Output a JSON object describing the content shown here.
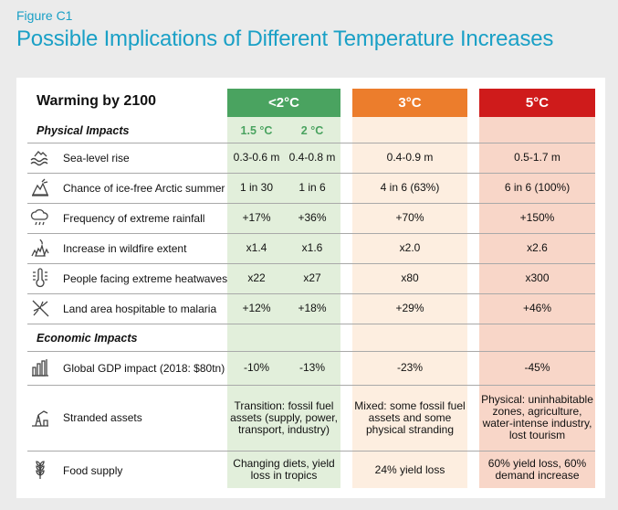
{
  "figure_label": "Figure C1",
  "title": "Possible Implications of Different Temperature Increases",
  "table": {
    "warming_label": "Warming by 2100",
    "headers": {
      "low": "<2°C",
      "mid": "3°C",
      "high": "5°C"
    },
    "sub_headers": {
      "a": "1.5 °C",
      "b": "2 °C"
    },
    "colors": {
      "green": "#4aa360",
      "orange": "#ec7d2c",
      "red": "#cf1b1b",
      "title": "#1aa0c6"
    },
    "physical_title": "Physical Impacts",
    "physical": [
      {
        "icon": "sea-level-icon",
        "label": "Sea-level rise",
        "a": "0.3-0.6 m",
        "b": "0.4-0.8 m",
        "mid": "0.4-0.9 m",
        "high": "0.5-1.7 m"
      },
      {
        "icon": "arctic-ice-icon",
        "label": "Chance of ice-free Arctic summer",
        "a": "1 in 30",
        "b": "1 in 6",
        "mid": "4 in 6 (63%)",
        "high": "6 in 6 (100%)"
      },
      {
        "icon": "rain-cloud-icon",
        "label": "Frequency of extreme rainfall",
        "a": "+17%",
        "b": "+36%",
        "mid": "+70%",
        "high": "+150%"
      },
      {
        "icon": "wildfire-icon",
        "label": "Increase in wildfire extent",
        "a": "x1.4",
        "b": "x1.6",
        "mid": "x2.0",
        "high": "x2.6"
      },
      {
        "icon": "thermometer-icon",
        "label": "People facing extreme heatwaves",
        "a": "x22",
        "b": "x27",
        "mid": "x80",
        "high": "x300"
      },
      {
        "icon": "mosquito-icon",
        "label": "Land area hospitable to malaria",
        "a": "+12%",
        "b": "+18%",
        "mid": "+29%",
        "high": "+46%"
      }
    ],
    "economic_title": "Economic Impacts",
    "gdp": {
      "icon": "bar-chart-icon",
      "label": "Global GDP impact (2018: $80tn)",
      "a": "-10%",
      "b": "-13%",
      "mid": "-23%",
      "high": "-45%"
    },
    "stranded": {
      "icon": "stranded-assets-icon",
      "label": "Stranded assets",
      "low": "Transition: fossil fuel assets (supply, power, transport, industry)",
      "mid": "Mixed: some fossil fuel assets and some physical stranding",
      "high": "Physical: uninhabitable zones, agriculture, water-intense industry, lost tourism"
    },
    "food": {
      "icon": "wheat-icon",
      "label": "Food supply",
      "low": "Changing diets, yield loss in tropics",
      "mid": "24% yield loss",
      "high": "60% yield loss, 60% demand increase"
    }
  }
}
